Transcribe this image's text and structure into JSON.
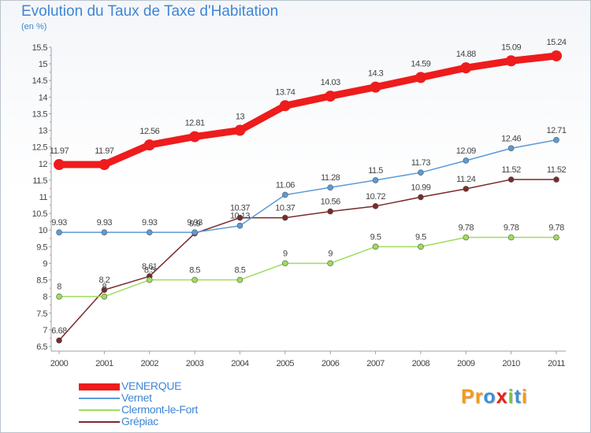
{
  "title": "Evolution du Taux de Taxe d'Habitation",
  "subtitle": "(en %)",
  "chart_data": {
    "type": "line",
    "x": [
      "2000",
      "2001",
      "2002",
      "2003",
      "2004",
      "2005",
      "2006",
      "2007",
      "2008",
      "2009",
      "2010",
      "2011"
    ],
    "ylim": [
      6.5,
      15.5
    ],
    "yticks": [
      "6.5",
      "7",
      "7.5",
      "8",
      "8.5",
      "9",
      "9.5",
      "10",
      "10.5",
      "11",
      "11.5",
      "12",
      "12.5",
      "13",
      "13.5",
      "14",
      "14.5",
      "15",
      "15.5"
    ],
    "grid": false,
    "legend_position": "bottom-left",
    "series": [
      {
        "name": "VENERQUE",
        "color": "#ee1c1c",
        "values": [
          11.97,
          11.97,
          12.56,
          12.81,
          13,
          13.74,
          14.03,
          14.3,
          14.59,
          14.88,
          15.09,
          15.24
        ],
        "labels": [
          "11.97",
          "11.97",
          "12.56",
          "12.81",
          "13",
          "13.74",
          "14.03",
          "14.3",
          "14.59",
          "14.88",
          "15.09",
          "15.24"
        ]
      },
      {
        "name": "Vernet",
        "color": "#5b9bd5",
        "values": [
          9.93,
          9.93,
          9.93,
          9.93,
          10.13,
          11.06,
          11.28,
          11.5,
          11.73,
          12.09,
          12.46,
          12.71
        ],
        "labels": [
          "9.93",
          "9.93",
          "9.93",
          "9.93",
          "10.13",
          "11.06",
          "11.28",
          "11.5",
          "11.73",
          "12.09",
          "12.46",
          "12.71"
        ]
      },
      {
        "name": "Clermont-le-Fort",
        "color": "#9fdc5b",
        "values": [
          8,
          8,
          8.5,
          8.5,
          8.5,
          9,
          9,
          9.5,
          9.5,
          9.78,
          9.78,
          9.78
        ],
        "labels": [
          "8",
          "8",
          "8.5",
          "8.5",
          "8.5",
          "9",
          "9",
          "9.5",
          "9.5",
          "9.78",
          "9.78",
          "9.78"
        ]
      },
      {
        "name": "Grépiac",
        "color": "#7a2a2a",
        "values": [
          6.68,
          8.2,
          8.61,
          9.9,
          10.37,
          10.37,
          10.56,
          10.72,
          10.99,
          11.24,
          11.52,
          11.52
        ],
        "labels": [
          "6.68",
          "8.2",
          "8.61",
          "9.9",
          "10.37",
          "10.37",
          "10.56",
          "10.72",
          "10.99",
          "11.24",
          "11.52",
          "11.52"
        ]
      }
    ]
  },
  "logo": {
    "letters": [
      {
        "ch": "P",
        "color": "#f29a1c"
      },
      {
        "ch": "r",
        "color": "#f29a1c"
      },
      {
        "ch": "o",
        "color": "#3d8fd6"
      },
      {
        "ch": "x",
        "color": "#e2231a"
      },
      {
        "ch": "i",
        "color": "#78c043"
      },
      {
        "ch": "t",
        "color": "#3d8fd6"
      },
      {
        "ch": "i",
        "color": "#f29a1c"
      }
    ]
  }
}
